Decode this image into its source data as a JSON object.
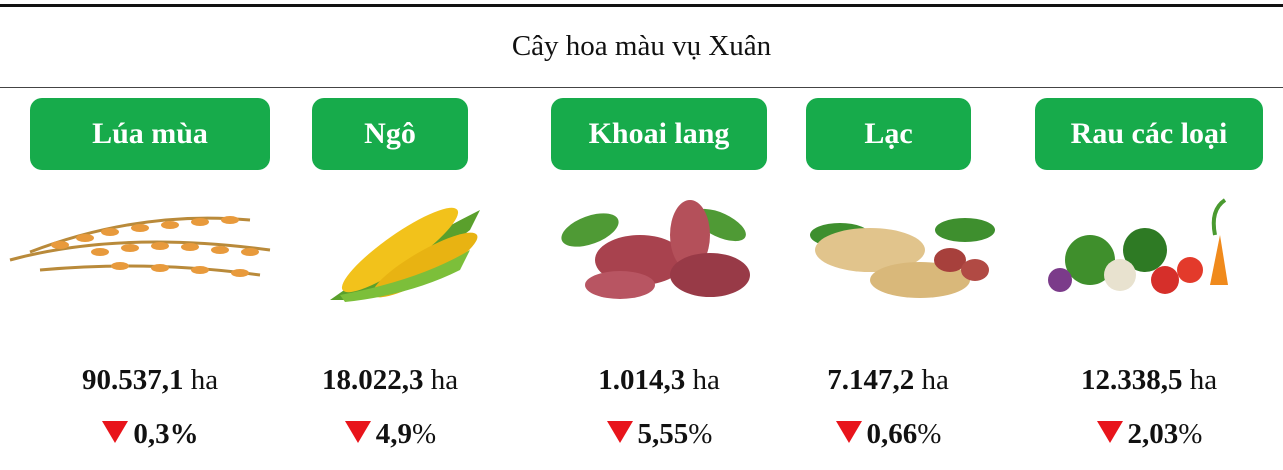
{
  "title": "Cây hoa màu vụ Xuân",
  "items": [
    {
      "label": "Lúa mùa",
      "area": "90.537,1",
      "unit": "ha",
      "change": "0,3%"
    },
    {
      "label": "Ngô",
      "area": "18.022,3",
      "unit": "ha",
      "change": "4,9",
      "change_unit": "%"
    },
    {
      "label": "Khoai lang",
      "area": "1.014,3",
      "unit": "ha",
      "change": "5,55",
      "change_unit": "%"
    },
    {
      "label": "Lạc",
      "area": "7.147,2",
      "unit": "ha",
      "change": "0,66",
      "change_unit": "%"
    },
    {
      "label": "Rau các loại",
      "area": "12.338,5",
      "unit": "ha",
      "change": "2,03",
      "change_unit": "%"
    }
  ]
}
